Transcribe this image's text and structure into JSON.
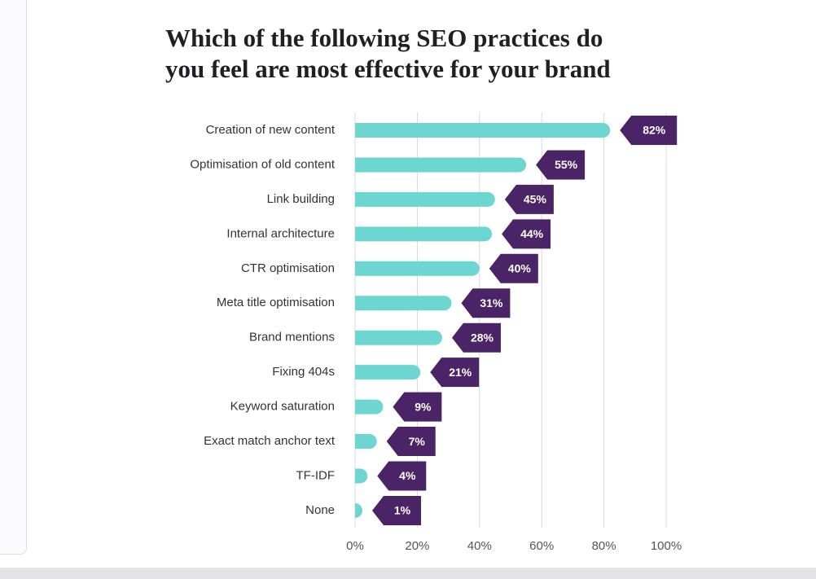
{
  "chart_data": {
    "type": "bar",
    "orientation": "horizontal",
    "title": "Which of the following SEO practices do\nyou feel are most effective for your brand",
    "categories": [
      "Creation of new content",
      "Optimisation of old content",
      "Link building",
      "Internal architecture",
      "CTR optimisation",
      "Meta title optimisation",
      "Brand mentions",
      "Fixing 404s",
      "Keyword saturation",
      "Exact match anchor text",
      "TF-IDF",
      "None"
    ],
    "values": [
      82,
      55,
      45,
      44,
      40,
      31,
      28,
      21,
      9,
      7,
      4,
      1
    ],
    "value_labels": [
      "82%",
      "55%",
      "45%",
      "44%",
      "40%",
      "31%",
      "28%",
      "21%",
      "9%",
      "7%",
      "4%",
      "1%"
    ],
    "color": "#6dd6d0",
    "label_color": "#4a2466",
    "xlim": [
      0,
      100
    ],
    "xticks": [
      {
        "value": 0,
        "label": "0%"
      },
      {
        "value": 20,
        "label": "20%"
      },
      {
        "value": 40,
        "label": "40%"
      },
      {
        "value": 60,
        "label": "60%"
      },
      {
        "value": 80,
        "label": "80%"
      },
      {
        "value": 100,
        "label": "100%"
      }
    ],
    "grid": true
  }
}
